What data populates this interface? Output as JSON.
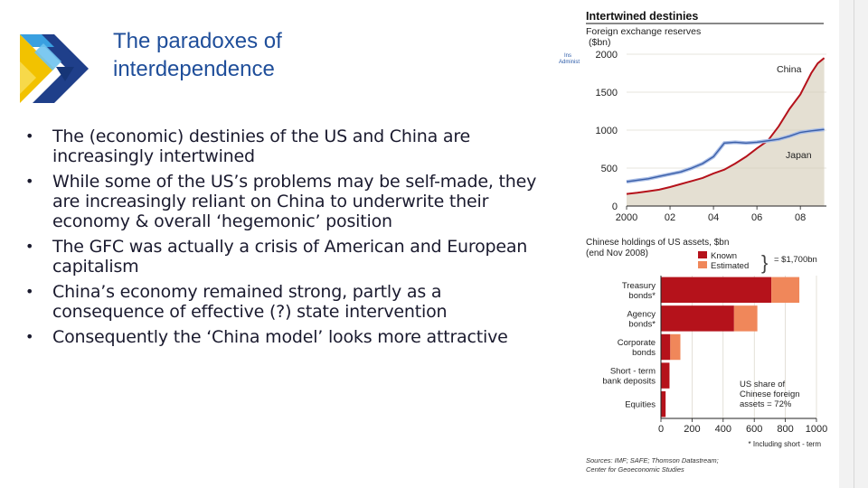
{
  "slide": {
    "title_line1": "The paradoxes of",
    "title_line2": "interdependence",
    "bullets": [
      "The (economic) destinies of the US and China are increasingly intertwined",
      "While some of the US’s problems may be self-made, they are increasingly reliant on China to underwrite their economy & overall ‘hegemonic’ position",
      "The GFC was actually a crisis of American and European capitalism",
      "China’s economy remained strong, partly as a consequence of effective (?) state intervention",
      "Consequently the ‘China model’ looks more attractive"
    ]
  },
  "figure": {
    "heading": "Intertwined destinies",
    "sources_line1": "Sources: IMF; SAFE; Thomson Datastream;",
    "sources_line2": "Center for Geoeconomic Studies",
    "clipped_text_1": "Ins",
    "clipped_text_2": "Administ"
  },
  "chart_data": [
    {
      "type": "line",
      "subtitle_line1": "Foreign exchange reserves",
      "subtitle_line2": "($bn)",
      "x_ticks": [
        "2000",
        "02",
        "04",
        "06",
        "08"
      ],
      "y_ticks": [
        "0",
        "500",
        "1000",
        "1500",
        "2000"
      ],
      "ylim": [
        0,
        2000
      ],
      "xlim": [
        2000,
        2009.2
      ],
      "series": [
        {
          "name": "China",
          "color": "#b5121b",
          "points": [
            [
              2000.0,
              160
            ],
            [
              2000.5,
              175
            ],
            [
              2001.0,
              195
            ],
            [
              2001.5,
              215
            ],
            [
              2002.0,
              250
            ],
            [
              2002.5,
              290
            ],
            [
              2003.0,
              330
            ],
            [
              2003.5,
              370
            ],
            [
              2004.0,
              430
            ],
            [
              2004.5,
              480
            ],
            [
              2005.0,
              560
            ],
            [
              2005.5,
              650
            ],
            [
              2006.0,
              760
            ],
            [
              2006.5,
              860
            ],
            [
              2007.0,
              1050
            ],
            [
              2007.5,
              1280
            ],
            [
              2008.0,
              1470
            ],
            [
              2008.5,
              1750
            ],
            [
              2008.8,
              1880
            ],
            [
              2009.1,
              1950
            ]
          ]
        },
        {
          "name": "Japan",
          "color": "#3b5fa8",
          "points": [
            [
              2000.0,
              320
            ],
            [
              2000.5,
              340
            ],
            [
              2001.0,
              360
            ],
            [
              2001.5,
              390
            ],
            [
              2002.0,
              420
            ],
            [
              2002.5,
              450
            ],
            [
              2003.0,
              500
            ],
            [
              2003.5,
              560
            ],
            [
              2004.0,
              650
            ],
            [
              2004.5,
              830
            ],
            [
              2005.0,
              840
            ],
            [
              2005.5,
              830
            ],
            [
              2006.0,
              840
            ],
            [
              2006.5,
              860
            ],
            [
              2007.0,
              880
            ],
            [
              2007.5,
              920
            ],
            [
              2008.0,
              970
            ],
            [
              2008.5,
              990
            ],
            [
              2008.8,
              1000
            ],
            [
              2009.1,
              1010
            ]
          ]
        }
      ]
    },
    {
      "type": "bar",
      "subtitle_line1": "Chinese holdings of US assets, $bn",
      "subtitle_line2": "(end Nov 2008)",
      "legend": [
        {
          "name": "Known",
          "color": "#b5121b"
        },
        {
          "name": "Estimated",
          "color": "#f0875a"
        }
      ],
      "total_label": "= $1,700bn",
      "categories": [
        [
          "Treasury",
          "bonds*"
        ],
        [
          "Agency",
          "bonds*"
        ],
        [
          "Corporate",
          "bonds"
        ],
        [
          "Short - term",
          "bank deposits"
        ],
        [
          "Equities"
        ]
      ],
      "series": [
        {
          "name": "Known",
          "values": [
            710,
            470,
            60,
            55,
            30
          ]
        },
        {
          "name": "Estimated",
          "values": [
            180,
            150,
            65,
            0,
            0
          ]
        }
      ],
      "x_ticks": [
        "0",
        "200",
        "400",
        "600",
        "800",
        "1000"
      ],
      "xlim": [
        0,
        1000
      ],
      "note_line1": "US share of",
      "note_line2": "Chinese foreign",
      "note_line3": "assets = 72%",
      "footnote": "* Including short - term"
    }
  ]
}
